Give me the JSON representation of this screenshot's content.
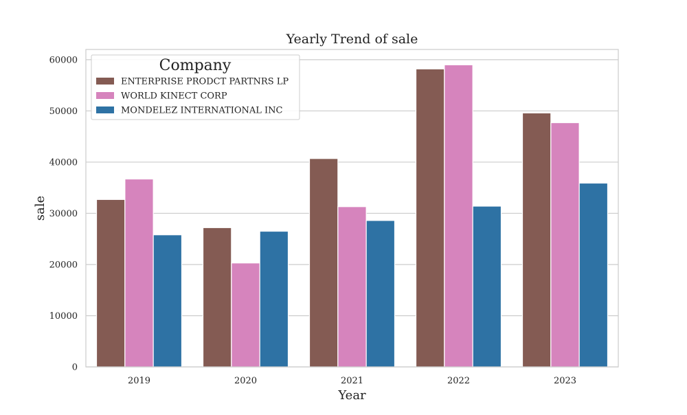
{
  "chart_data": {
    "type": "bar",
    "title": "Yearly Trend of sale",
    "xlabel": "Year",
    "ylabel": "sale",
    "categories": [
      "2019",
      "2020",
      "2021",
      "2022",
      "2023"
    ],
    "ylim": [
      0,
      62000
    ],
    "yticks": [
      0,
      10000,
      20000,
      30000,
      40000,
      50000,
      60000
    ],
    "grid": "horizontal",
    "legend": {
      "title": "Company",
      "position": "top-left"
    },
    "series": [
      {
        "name": "ENTERPRISE PRODCT PARTNRS LP",
        "color": "#845B53",
        "values": [
          32700,
          27200,
          40700,
          58200,
          49600
        ]
      },
      {
        "name": "WORLD KINECT CORP",
        "color": "#D684BD",
        "values": [
          36700,
          20300,
          31300,
          59000,
          47700
        ]
      },
      {
        "name": "MONDELEZ INTERNATIONAL INC",
        "color": "#2E72A4",
        "values": [
          25800,
          26500,
          28600,
          31400,
          35900
        ]
      }
    ]
  }
}
